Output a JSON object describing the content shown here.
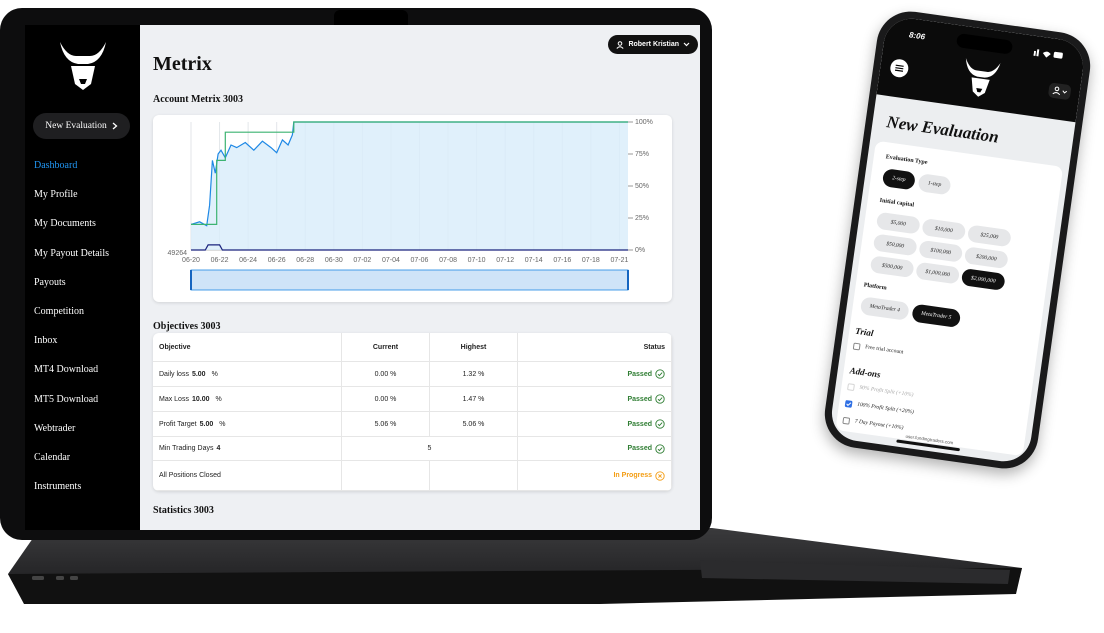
{
  "laptop": {
    "sidebar": {
      "button": "New Evaluation",
      "nav": [
        "Dashboard",
        "My Profile",
        "My Documents",
        "My Payout Details",
        "Payouts",
        "Competition",
        "Inbox",
        "MT4 Download",
        "MT5 Download",
        "Webtrader",
        "Calendar",
        "Instruments"
      ],
      "active": 0
    },
    "user": "Robert Kristian",
    "title": "Metrix",
    "chart_section": "Account Metrix 3003",
    "chart": {
      "type": "line",
      "grid": true,
      "y_left_label": 49264,
      "xlim": [
        0,
        15.3
      ],
      "xticks": [
        {
          "value": 0,
          "label": "06-20"
        },
        {
          "value": 1,
          "label": "06-22"
        },
        {
          "value": 2,
          "label": "06-24"
        },
        {
          "value": 3,
          "label": "06-26"
        },
        {
          "value": 4,
          "label": "06-28"
        },
        {
          "value": 5,
          "label": "06-30"
        },
        {
          "value": 6,
          "label": "07-02"
        },
        {
          "value": 7,
          "label": "07-04"
        },
        {
          "value": 8,
          "label": "07-06"
        },
        {
          "value": 9,
          "label": "07-08"
        },
        {
          "value": 10,
          "label": "07-10"
        },
        {
          "value": 11,
          "label": "07-12"
        },
        {
          "value": 12,
          "label": "07-14"
        },
        {
          "value": 13,
          "label": "07-16"
        },
        {
          "value": 14,
          "label": "07-18"
        },
        {
          "value": 15,
          "label": "07-21"
        }
      ],
      "ylim": [
        0,
        100
      ],
      "yticks": [
        {
          "value": 100,
          "label": "100%"
        },
        {
          "value": 75,
          "label": "75%"
        },
        {
          "value": 50,
          "label": "50%"
        },
        {
          "value": 25,
          "label": "25%"
        },
        {
          "value": 0,
          "label": "0%"
        }
      ],
      "series": [
        {
          "color": "#1e88e5",
          "fill": "#d8ecfa",
          "x": [
            0,
            0.3,
            0.55,
            0.65,
            0.75,
            0.85,
            0.95,
            1.05,
            1.2,
            1.4,
            1.6,
            1.9,
            2.2,
            2.5,
            2.8,
            3.0,
            3.2,
            3.4,
            3.55,
            3.6,
            15.3
          ],
          "values": [
            20,
            22,
            19,
            35,
            70,
            60,
            75,
            78,
            72,
            82,
            80,
            84,
            78,
            85,
            80,
            76,
            86,
            82,
            90,
            100,
            100
          ]
        },
        {
          "color": "#3cb371",
          "fill": "none",
          "x": [
            0,
            0.9,
            0.9,
            1.2,
            1.2,
            3.6,
            3.6,
            15.3
          ],
          "values": [
            20,
            20,
            70,
            70,
            92,
            92,
            100,
            100
          ]
        },
        {
          "color": "#1a237e",
          "fill": "none",
          "x": [
            0,
            0.5,
            0.6,
            1.0,
            1.1,
            15.3
          ],
          "values": [
            0,
            0,
            4,
            4,
            0,
            0
          ]
        }
      ]
    },
    "objectives_section": "Objectives 3003",
    "table": {
      "header": [
        "Objective",
        "Current",
        "Highest",
        "Status"
      ],
      "rows": [
        {
          "objective": "Daily loss",
          "limit": "5.00",
          "unit": "%",
          "current": "0.00 %",
          "highest": "1.32 %",
          "status": "Passed",
          "status_color": "#2e7d32",
          "icon": "check"
        },
        {
          "objective": "Max Loss",
          "limit": "10.00",
          "unit": "%",
          "current": "0.00 %",
          "highest": "1.47 %",
          "status": "Passed",
          "status_color": "#2e7d32",
          "icon": "check"
        },
        {
          "objective": "Profit Target",
          "limit": "5.00",
          "unit": "%",
          "current": "5.06 %",
          "highest": "5.06 %",
          "status": "Passed",
          "status_color": "#2e7d32",
          "icon": "check"
        },
        {
          "objective": "Min Trading Days",
          "limit": "4",
          "current": "5",
          "status": "Passed",
          "status_color": "#2e7d32",
          "icon": "check"
        },
        {
          "objective": "All Positions Closed",
          "status": "In Progress",
          "status_color": "#f39c12",
          "icon": "cross"
        }
      ]
    },
    "statistics_section": "Statistics 3003"
  },
  "phone": {
    "time": "8:06",
    "title": "New Evaluation",
    "evaluation_type": {
      "label": "Evaluation Type",
      "options": [
        "2-step",
        "1-step"
      ],
      "selected": 0
    },
    "initial_capital": {
      "label": "Initial capital",
      "options": [
        "$5,000",
        "$10,000",
        "$25,000",
        "$50,000",
        "$100,000",
        "$200,000",
        "$500,000",
        "$1,000,000",
        "$2,000,000"
      ],
      "selected": 8
    },
    "platform": {
      "label": "Platform",
      "options": [
        "MetaTrader 4",
        "MetaTrader 5"
      ],
      "selected": 1
    },
    "trial": {
      "heading": "Trial",
      "option": "Free trial account",
      "checked": false
    },
    "addons": {
      "heading": "Add-ons",
      "options": [
        {
          "label": "90% Profit Split (+10%)",
          "checked": false,
          "disabled": true
        },
        {
          "label": "100% Profit Split (+20%)",
          "checked": true,
          "disabled": false
        },
        {
          "label": "7 Day Payout (+10%)",
          "checked": false,
          "disabled": false
        }
      ]
    },
    "url": "user.fundingtraders.com"
  }
}
